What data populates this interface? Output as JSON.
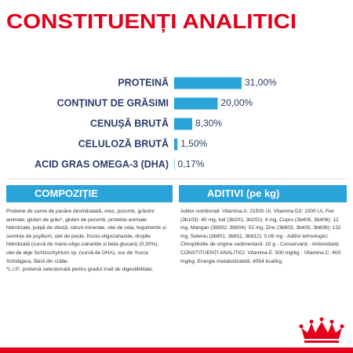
{
  "chart_data": {
    "type": "bar",
    "orientation": "horizontal",
    "title": "CONSTITUENȚI ANALITICI",
    "categories": [
      "PROTEINĂ",
      "CONȚINUT DE GRĂSIMI",
      "CENUȘĂ BRUTĂ",
      "CELULOZĂ BRUTĂ",
      "ACID GRAS OMEGA-3 (DHA)"
    ],
    "values": [
      31,
      20,
      8.3,
      1.5,
      0.17
    ],
    "value_labels": [
      "31,00%",
      "20,00%",
      "8,30%",
      "1,50%",
      "0,17%"
    ],
    "color": "#2aa3d9"
  },
  "composition": {
    "title": "COMPOZIȚIE",
    "text": "Proteine de carne de pasăre deshidratată, orez, porumb, grăsimi animale, gluten de grâu*, gluten de porumb, proteine animale hidrolizate, pulpă de sfeclă, săruri minerale, ulei de soia, tegumente și semințe de psyllium, ulei de pește, fructo-oligozaharide, drojdie hidrolizată (sursă de mano-oligo-zaharide și beta glucani) (0,30%), ulei de alge Schizochytrium sp. (sursă de DHA), suc de Yucca Schidigera, făină din crăite.",
    "note": "*L.I.P.: proteină selecționată pentru gradul înalt de digestibilitate."
  },
  "additives": {
    "title": "ADITIVI (pe kg)",
    "text": "Aditivi nutriționali: Vitamina A: 21500 UI, Vitamina D3: 1000 UI, Fier (3b103): 40 mg, Iod (3b201, 3b202): 4 mg, Cupru (3b405, 3b406): 12 mg, Mangan (3b502, 3b504): 52 mg, Zinc (3b603, 3b605, 3b606): 132 mg, Seleniu (3b801, 3b811, 3b812): 0,06 mg - Aditivi tehnologici: Clinoptilolite de origine sedimentară: 10 g - Conservanți - Antioxidanți. CONSTITUENȚI ANALITICI: Vitamina E: 500 mg/kg - Vitamina C: 400 mg/kg. Energie metabolizabilă: 4054 kcal/kg."
  }
}
